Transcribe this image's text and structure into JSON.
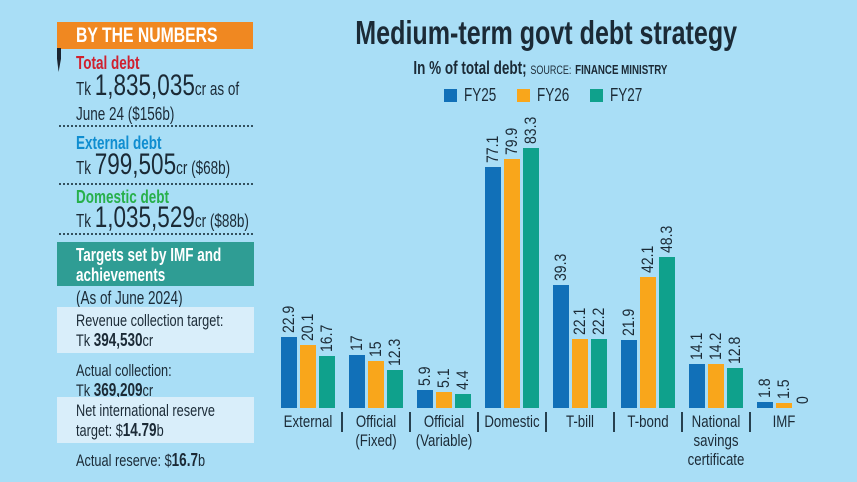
{
  "colors": {
    "background": "#a9def6",
    "ribbon_orange": "#f08821",
    "red": "#d0202e",
    "blue": "#0f8dd0",
    "green": "#27b04b",
    "teal_box": "#2f9d94",
    "light_box": "#d9eefa",
    "navy_text": "#1b2a36"
  },
  "sidebar": {
    "header": "BY THE NUMBERS",
    "stats": [
      {
        "label": "Total debt",
        "color": "#d0202e",
        "prefix": "Tk ",
        "amount": "1,835,035",
        "suffix": "cr as of",
        "line2": "June 24 ($156b)"
      },
      {
        "label": "External debt",
        "color": "#0f8dd0",
        "prefix": "Tk ",
        "amount": "799,505",
        "suffix": "cr ($68b)"
      },
      {
        "label": "Domestic debt",
        "color": "#27b04b",
        "prefix": "Tk ",
        "amount": "1,035,529",
        "suffix": "cr ($88b)"
      }
    ],
    "imf": {
      "header": "Targets set by IMF and achievements",
      "subheader": "(As of June 2024)",
      "rows": [
        {
          "line1": "Revenue collection target:",
          "pre": "Tk ",
          "bold": "394,530",
          "post": "cr",
          "boxed": true
        },
        {
          "line1": "Actual collection:",
          "pre": "Tk ",
          "bold": "369,209",
          "post": "cr",
          "boxed": false
        },
        {
          "line1": "Net international reserve",
          "pre": "target: $",
          "bold": "14.79",
          "post": "b",
          "boxed": true
        },
        {
          "line1": "",
          "pre": "Actual reserve: $",
          "bold": "16.7",
          "post": "b",
          "boxed": false
        }
      ]
    }
  },
  "chart_data": {
    "type": "bar",
    "title": "Medium-term govt debt strategy",
    "subtitle": "In % of total debt;",
    "source_label": "SOURCE:",
    "source": "FINANCE MINISTRY",
    "ylabel": "% of total debt",
    "ylim": [
      0,
      90
    ],
    "grid": false,
    "legend_position": "top",
    "categories": [
      "External",
      "Official\n(Fixed)",
      "Official\n(Variable)",
      "Domestic",
      "T-bill",
      "T-bond",
      "National\nsavings\ncertificate",
      "IMF"
    ],
    "series": [
      {
        "name": "FY25",
        "color": "#1170b8",
        "values": [
          22.9,
          17,
          5.9,
          77.1,
          39.3,
          21.9,
          14.1,
          1.8
        ]
      },
      {
        "name": "FY26",
        "color": "#f9a61b",
        "values": [
          20.1,
          15,
          5.1,
          79.9,
          22.1,
          42.1,
          14.2,
          1.5
        ]
      },
      {
        "name": "FY27",
        "color": "#0fa18c",
        "values": [
          16.7,
          12.3,
          4.4,
          83.3,
          22.2,
          48.3,
          12.8,
          0
        ]
      }
    ]
  }
}
